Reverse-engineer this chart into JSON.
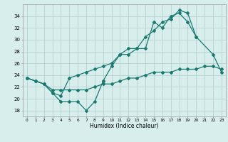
{
  "xlabel": "Humidex (Indice chaleur)",
  "x": [
    0,
    1,
    2,
    3,
    4,
    5,
    6,
    7,
    8,
    9,
    10,
    11,
    12,
    13,
    14,
    15,
    16,
    17,
    18,
    19,
    20,
    21,
    22,
    23
  ],
  "line_bottom": [
    23.5,
    23.0,
    22.5,
    21.5,
    21.5,
    21.5,
    21.5,
    21.5,
    22.0,
    22.5,
    22.5,
    23.0,
    23.5,
    23.5,
    24.0,
    24.5,
    24.5,
    24.5,
    25.0,
    25.0,
    25.0,
    25.5,
    25.5,
    25.0
  ],
  "line_mid": [
    23.5,
    23.0,
    22.5,
    21.0,
    20.5,
    23.5,
    24.0,
    24.5,
    25.0,
    25.5,
    26.0,
    27.5,
    28.5,
    28.5,
    28.5,
    33.0,
    32.0,
    34.0,
    34.5,
    33.0,
    30.5,
    null,
    null,
    null
  ],
  "line_top_x": [
    9,
    10,
    11,
    12,
    13,
    14,
    15,
    16,
    17,
    18,
    19,
    20,
    22,
    23
  ],
  "line_top_y": [
    23.0,
    25.5,
    27.5,
    27.5,
    28.5,
    30.5,
    31.5,
    33.0,
    33.5,
    35.0,
    34.5,
    30.5,
    27.5,
    24.5
  ],
  "line_low_x": [
    0,
    1,
    2,
    3,
    4,
    5,
    6,
    7,
    8,
    9
  ],
  "line_low_y": [
    23.5,
    23.0,
    22.5,
    21.0,
    19.5,
    19.5,
    19.5,
    18.0,
    19.5,
    23.0
  ],
  "ylim": [
    17,
    36
  ],
  "yticks": [
    18,
    20,
    22,
    24,
    26,
    28,
    30,
    32,
    34
  ],
  "xlim": [
    -0.5,
    23.5
  ],
  "bg_color": "#d8eeed",
  "line_color": "#1a7a70",
  "grid_color": "#b0cccc"
}
